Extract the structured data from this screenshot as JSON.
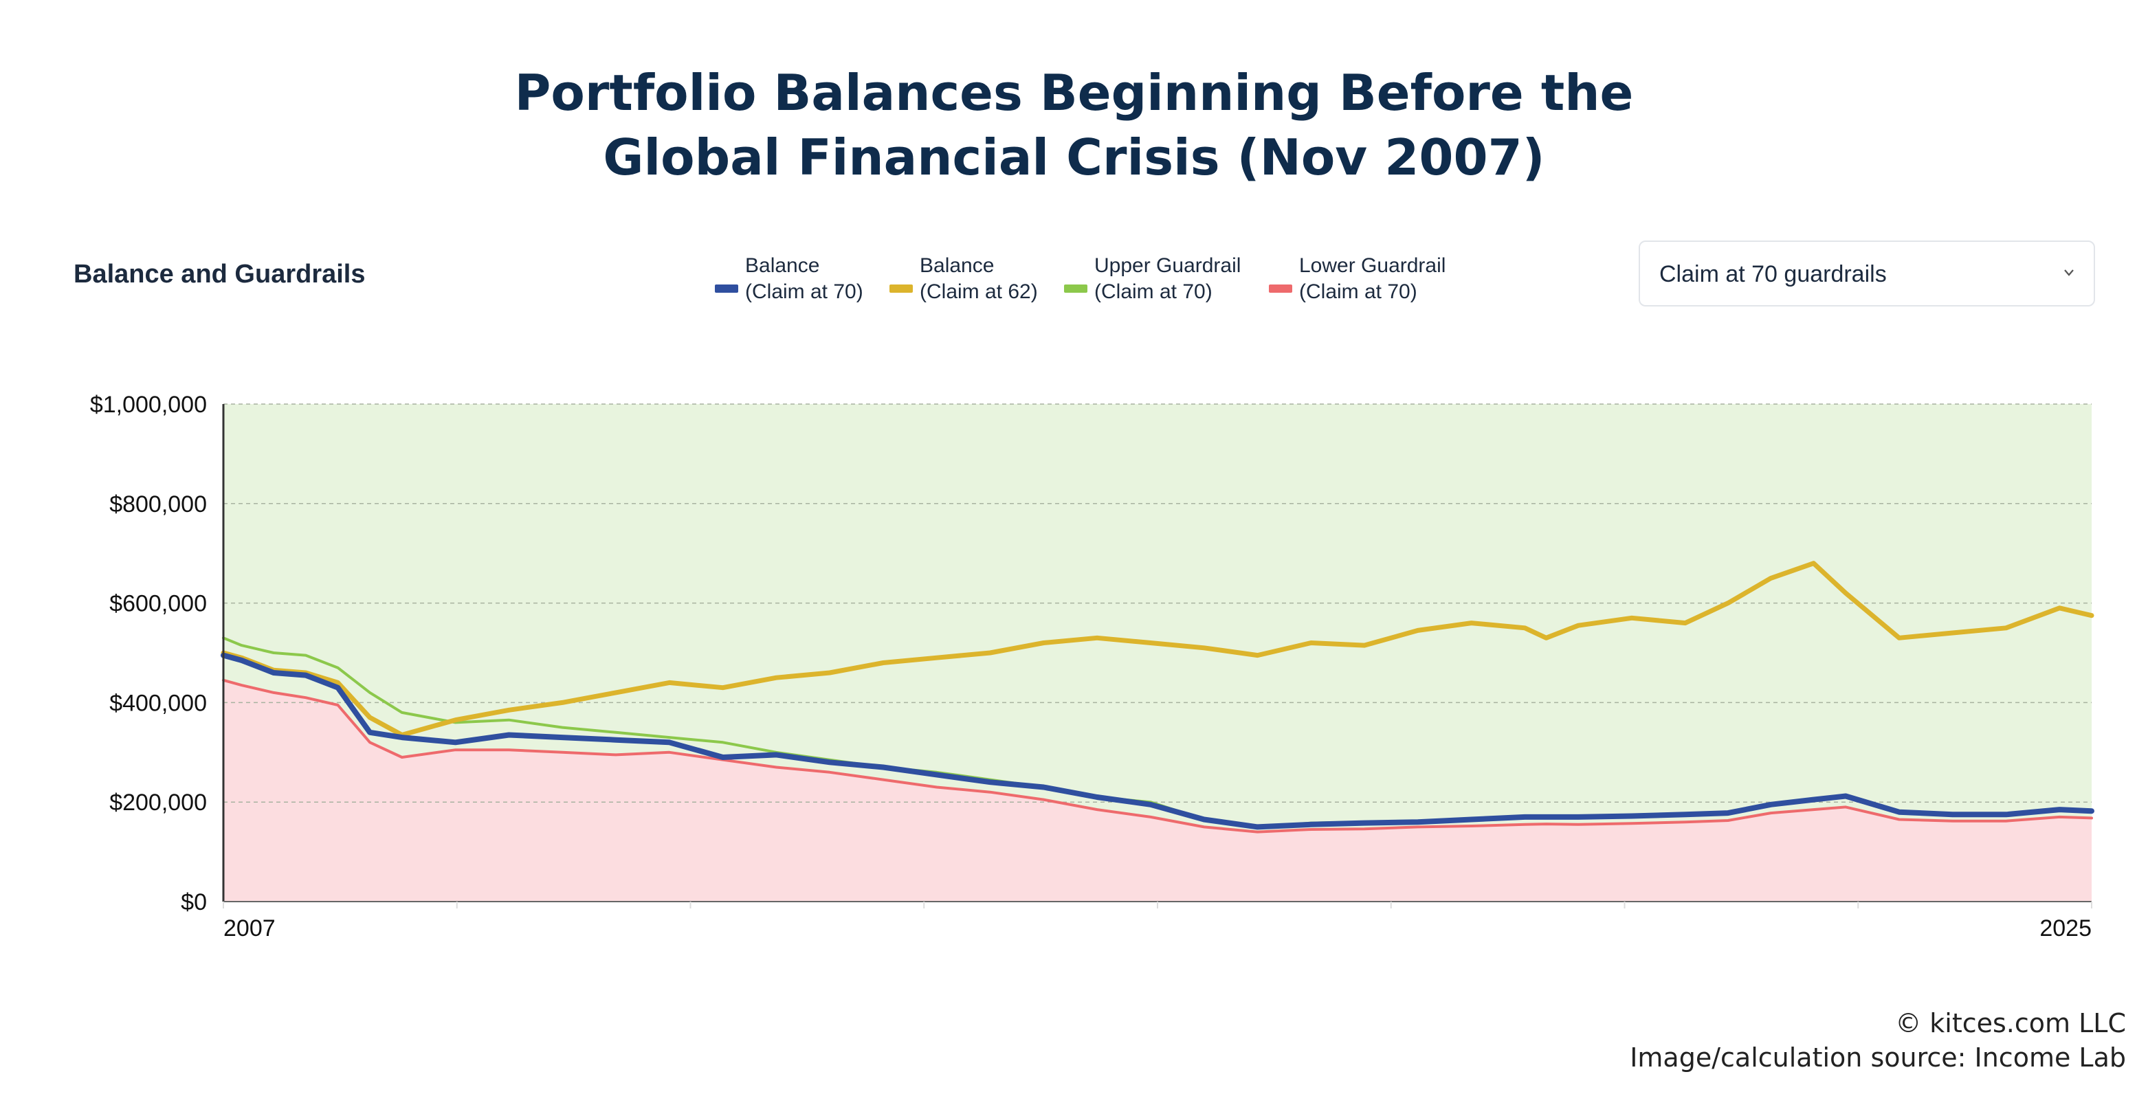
{
  "title": {
    "line1": "Portfolio Balances Beginning Before the",
    "line2": "Global Financial Crisis (Nov 2007)"
  },
  "section_title": "Balance and Guardrails",
  "legend": [
    {
      "line1": "Balance",
      "line2": "(Claim at 70)",
      "color": "#2f4f9f"
    },
    {
      "line1": "Balance",
      "line2": "(Claim at 62)",
      "color": "#dcb42c"
    },
    {
      "line1": "Upper Guardrail",
      "line2": "(Claim at 70)",
      "color": "#8cc84b"
    },
    {
      "line1": "Lower Guardrail",
      "line2": "(Claim at 70)",
      "color": "#ee6a6c"
    }
  ],
  "dropdown": {
    "selected": "Claim at 70 guardrails",
    "icon": "chevron-down-icon"
  },
  "footer": {
    "copyright": "© kitces.com LLC",
    "source": "Image/calculation source: Income Lab"
  },
  "chart_data": {
    "type": "line",
    "x_tick_labels": [
      "2007",
      "2025"
    ],
    "xlim": [
      2007.83,
      2025.3
    ],
    "ylim": [
      0,
      1000000
    ],
    "y_ticks": [
      0,
      200000,
      400000,
      600000,
      800000,
      1000000
    ],
    "y_tick_labels": [
      "$0",
      "$200,000",
      "$400,000",
      "$600,000",
      "$800,000",
      "$1,000,000"
    ],
    "grid": true,
    "legend_position": "top",
    "fill_colors": {
      "above_lower_guardrail": "#e8f4de",
      "below_lower_guardrail": "#fcdde0"
    },
    "x": [
      2007.83,
      2008.0,
      2008.3,
      2008.6,
      2008.9,
      2009.2,
      2009.5,
      2010.0,
      2010.5,
      2011.0,
      2011.5,
      2012.0,
      2012.5,
      2013.0,
      2013.5,
      2014.0,
      2014.5,
      2015.0,
      2015.5,
      2016.0,
      2016.5,
      2017.0,
      2017.5,
      2018.0,
      2018.5,
      2019.0,
      2019.5,
      2020.0,
      2020.2,
      2020.5,
      2021.0,
      2021.5,
      2021.9,
      2022.3,
      2022.7,
      2023.0,
      2023.5,
      2024.0,
      2024.5,
      2025.0,
      2025.3
    ],
    "series": [
      {
        "name": "Balance (Claim at 70)",
        "color": "#2f4f9f",
        "values": [
          495000,
          485000,
          460000,
          455000,
          430000,
          340000,
          330000,
          320000,
          335000,
          330000,
          325000,
          320000,
          290000,
          295000,
          280000,
          270000,
          255000,
          240000,
          230000,
          210000,
          195000,
          165000,
          150000,
          155000,
          158000,
          160000,
          165000,
          170000,
          170000,
          170000,
          172000,
          175000,
          178000,
          195000,
          205000,
          212000,
          180000,
          175000,
          175000,
          185000,
          182000
        ]
      },
      {
        "name": "Balance (Claim at 62)",
        "color": "#dcb42c",
        "values": [
          500000,
          490000,
          465000,
          460000,
          440000,
          370000,
          335000,
          365000,
          385000,
          400000,
          420000,
          440000,
          430000,
          450000,
          460000,
          480000,
          490000,
          500000,
          520000,
          530000,
          520000,
          510000,
          495000,
          520000,
          515000,
          545000,
          560000,
          550000,
          530000,
          555000,
          570000,
          560000,
          600000,
          650000,
          680000,
          620000,
          530000,
          540000,
          550000,
          590000,
          575000
        ]
      },
      {
        "name": "Upper Guardrail (Claim at 70)",
        "color": "#8cc84b",
        "values": [
          530000,
          515000,
          500000,
          495000,
          470000,
          420000,
          380000,
          360000,
          365000,
          350000,
          340000,
          330000,
          320000,
          300000,
          285000,
          270000,
          260000,
          245000,
          230000,
          210000,
          200000,
          165000,
          150000,
          158000,
          160000,
          162000,
          166000,
          170000,
          170000,
          171000,
          173000,
          176000,
          180000,
          195000,
          205000,
          212000,
          182000,
          177000,
          177000,
          186000,
          183000
        ]
      },
      {
        "name": "Lower Guardrail (Claim at 70)",
        "color": "#ee6a6c",
        "values": [
          445000,
          435000,
          420000,
          410000,
          395000,
          320000,
          290000,
          305000,
          305000,
          300000,
          295000,
          300000,
          285000,
          270000,
          260000,
          245000,
          230000,
          220000,
          205000,
          185000,
          170000,
          150000,
          140000,
          145000,
          146000,
          150000,
          152000,
          155000,
          156000,
          155000,
          157000,
          160000,
          163000,
          178000,
          185000,
          190000,
          165000,
          162000,
          162000,
          170000,
          168000
        ]
      }
    ]
  }
}
